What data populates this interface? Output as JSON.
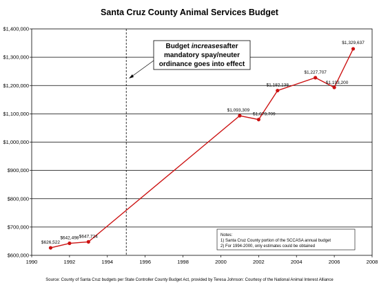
{
  "chart_data": {
    "type": "line",
    "title": "Santa Cruz County Animal Services Budget",
    "x": [
      1991,
      1992,
      1993,
      2001,
      2002,
      2003,
      2005,
      2006,
      2007
    ],
    "series": [
      {
        "values": [
          626522,
          642498,
          647724,
          1093309,
          1079709,
          1182138,
          1227707,
          1193200,
          1329637
        ],
        "labels": [
          "$626,522",
          "$642,498",
          "$647,724",
          "$1,093,309",
          "$1,079,709",
          "$1,182,138",
          "$1,227,707",
          "$1,193,200",
          "$1,329,637"
        ],
        "color": "#cc1111"
      }
    ],
    "xlim": [
      1990,
      2008
    ],
    "ylim": [
      600000,
      1400000
    ],
    "x_ticks": [
      1990,
      1992,
      1994,
      1996,
      1998,
      2000,
      2002,
      2004,
      2006,
      2008
    ],
    "y_ticks": [
      {
        "value": 600000,
        "label": "$600,000"
      },
      {
        "value": 700000,
        "label": "$700,000"
      },
      {
        "value": 800000,
        "label": "$800,000"
      },
      {
        "value": 900000,
        "label": "$900,000"
      },
      {
        "value": 1000000,
        "label": "$1,000,000"
      },
      {
        "value": 1100000,
        "label": "$1,100,000"
      },
      {
        "value": 1200000,
        "label": "$1,200,000"
      },
      {
        "value": 1300000,
        "label": "$1,300,000"
      },
      {
        "value": 1400000,
        "label": "$1,400,000"
      }
    ],
    "grid": true,
    "vline_x": 1995,
    "annotation": {
      "line1_pre": "Budget ",
      "line1_italic": "increases",
      "line1_post": "after",
      "line2": "mandatory spay/neuter",
      "line3": "ordinance goes into effect"
    },
    "notes": [
      "Notes:",
      "1) Santa Cruz County portion of the SCCASA annual budget",
      "2) For 1994-2000, only estimates could be obtained"
    ]
  },
  "source": "Source:  County of Santa Cruz budgets per State Controller County Budget Act, provided by Teresa Johnson:  Courtesy of the National Animal Interest Alliance"
}
